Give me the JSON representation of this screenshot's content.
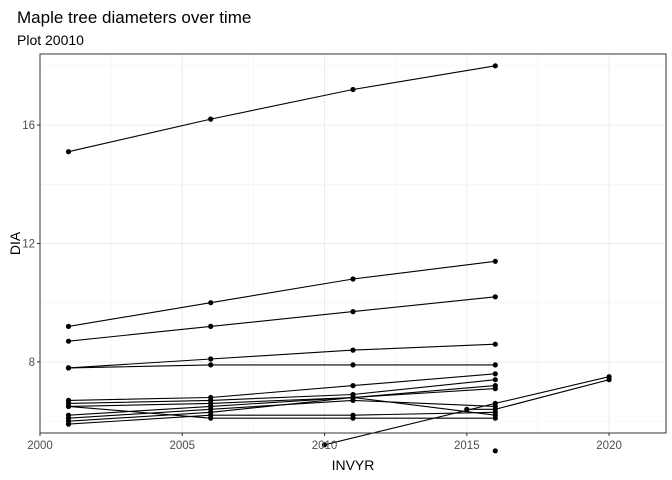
{
  "chart_data": {
    "type": "line",
    "title": "Maple tree diameters over time",
    "subtitle": "Plot 20010",
    "xlabel": "INVYR",
    "ylabel": "DIA",
    "xlim": [
      2000,
      2022
    ],
    "ylim": [
      5.6,
      18.4
    ],
    "x_ticks": [
      2000,
      2005,
      2010,
      2015,
      2020
    ],
    "x_tick_labels": [
      "2000",
      "2005",
      "2010",
      "2015",
      "2020"
    ],
    "y_ticks": [
      8,
      12,
      16
    ],
    "y_tick_labels": [
      "8",
      "12",
      "16"
    ],
    "x_minor": [
      2002.5,
      2007.5,
      2012.5,
      2017.5
    ],
    "y_minor": [
      6,
      10,
      14,
      18
    ],
    "grid": true,
    "legend": "none",
    "series": [
      {
        "x": [
          2001,
          2006,
          2011,
          2016
        ],
        "y": [
          15.1,
          16.2,
          17.2,
          18.0
        ]
      },
      {
        "x": [
          2001,
          2006,
          2011,
          2016
        ],
        "y": [
          9.2,
          10.0,
          10.8,
          11.4
        ]
      },
      {
        "x": [
          2001,
          2006,
          2011,
          2016
        ],
        "y": [
          8.7,
          9.2,
          9.7,
          10.2
        ]
      },
      {
        "x": [
          2001,
          2006,
          2011,
          2016
        ],
        "y": [
          7.8,
          8.1,
          8.4,
          8.6
        ]
      },
      {
        "x": [
          2001,
          2006,
          2011,
          2016
        ],
        "y": [
          7.8,
          7.9,
          7.9,
          7.9
        ]
      },
      {
        "x": [
          2001,
          2006,
          2011,
          2016
        ],
        "y": [
          6.7,
          6.8,
          7.2,
          7.6
        ]
      },
      {
        "x": [
          2001,
          2006,
          2011,
          2016
        ],
        "y": [
          6.6,
          6.7,
          6.9,
          7.4
        ]
      },
      {
        "x": [
          2001,
          2006,
          2011,
          2016
        ],
        "y": [
          6.5,
          6.6,
          6.8,
          7.2
        ]
      },
      {
        "x": [
          2001,
          2006,
          2011,
          2016
        ],
        "y": [
          6.2,
          6.5,
          6.8,
          7.1
        ]
      },
      {
        "x": [
          2001,
          2006,
          2011,
          2016
        ],
        "y": [
          6.1,
          6.4,
          6.7,
          6.5
        ]
      },
      {
        "x": [
          2001,
          2006,
          2011,
          2016
        ],
        "y": [
          6.0,
          6.3,
          6.8,
          6.2
        ]
      },
      {
        "x": [
          2001,
          2006,
          2011,
          2016
        ],
        "y": [
          5.9,
          6.2,
          6.2,
          6.3
        ]
      },
      {
        "x": [
          2001,
          2006,
          2011,
          2016
        ],
        "y": [
          6.5,
          6.1,
          6.1,
          6.1
        ]
      },
      {
        "x": [
          2010,
          2016,
          2020
        ],
        "y": [
          5.2,
          6.6,
          7.5
        ]
      },
      {
        "x": [
          2015,
          2016,
          2020
        ],
        "y": [
          6.4,
          6.4,
          7.4
        ]
      },
      {
        "x": [
          2016
        ],
        "y": [
          5.0
        ]
      }
    ]
  }
}
